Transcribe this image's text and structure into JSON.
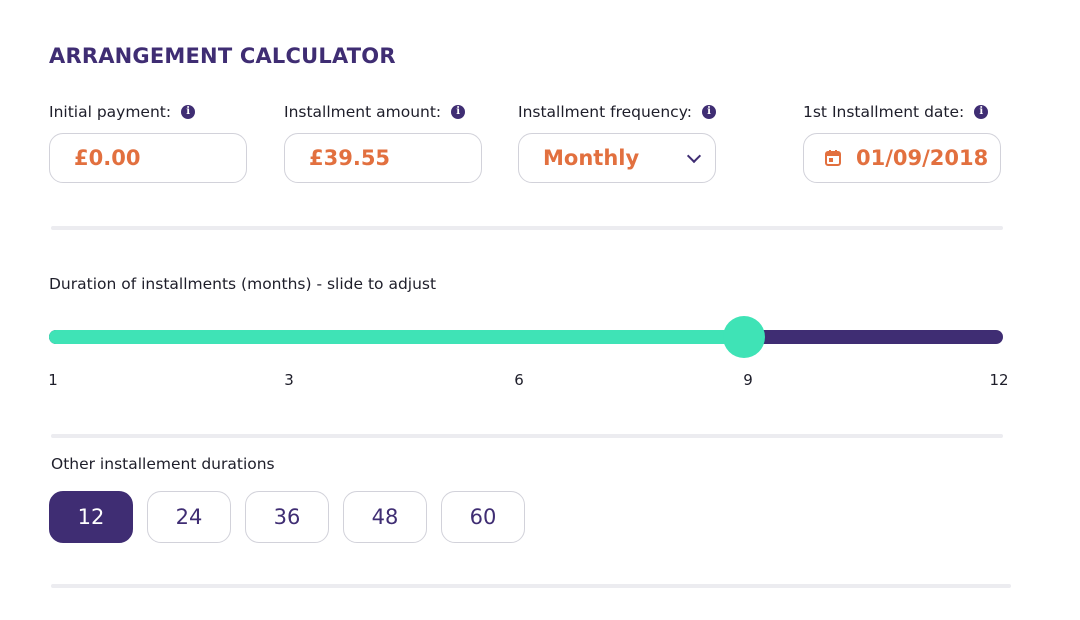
{
  "title": "ARRANGEMENT CALCULATOR",
  "fields": {
    "initial_payment": {
      "label": "Initial payment:",
      "value": "£0.00"
    },
    "installment_amount": {
      "label": "Installment amount:",
      "value": "£39.55"
    },
    "installment_frequency": {
      "label": "Installment frequency:",
      "value": "Monthly"
    },
    "first_installment_date": {
      "label": "1st Installment date:",
      "value": "01/09/2018"
    }
  },
  "info_glyph": "i",
  "slider": {
    "label": "Duration of installments (months) - slide to adjust",
    "min": 1,
    "max": 12,
    "value": 9,
    "ticks": [
      "1",
      "3",
      "6",
      "9",
      "12"
    ]
  },
  "other_durations": {
    "label": "Other installement durations",
    "options": [
      "12",
      "24",
      "36",
      "48",
      "60"
    ],
    "selected": "12"
  },
  "colors": {
    "brand": "#3f2d73",
    "accent": "#e2703f",
    "slider_fill": "#3fe3b6"
  }
}
